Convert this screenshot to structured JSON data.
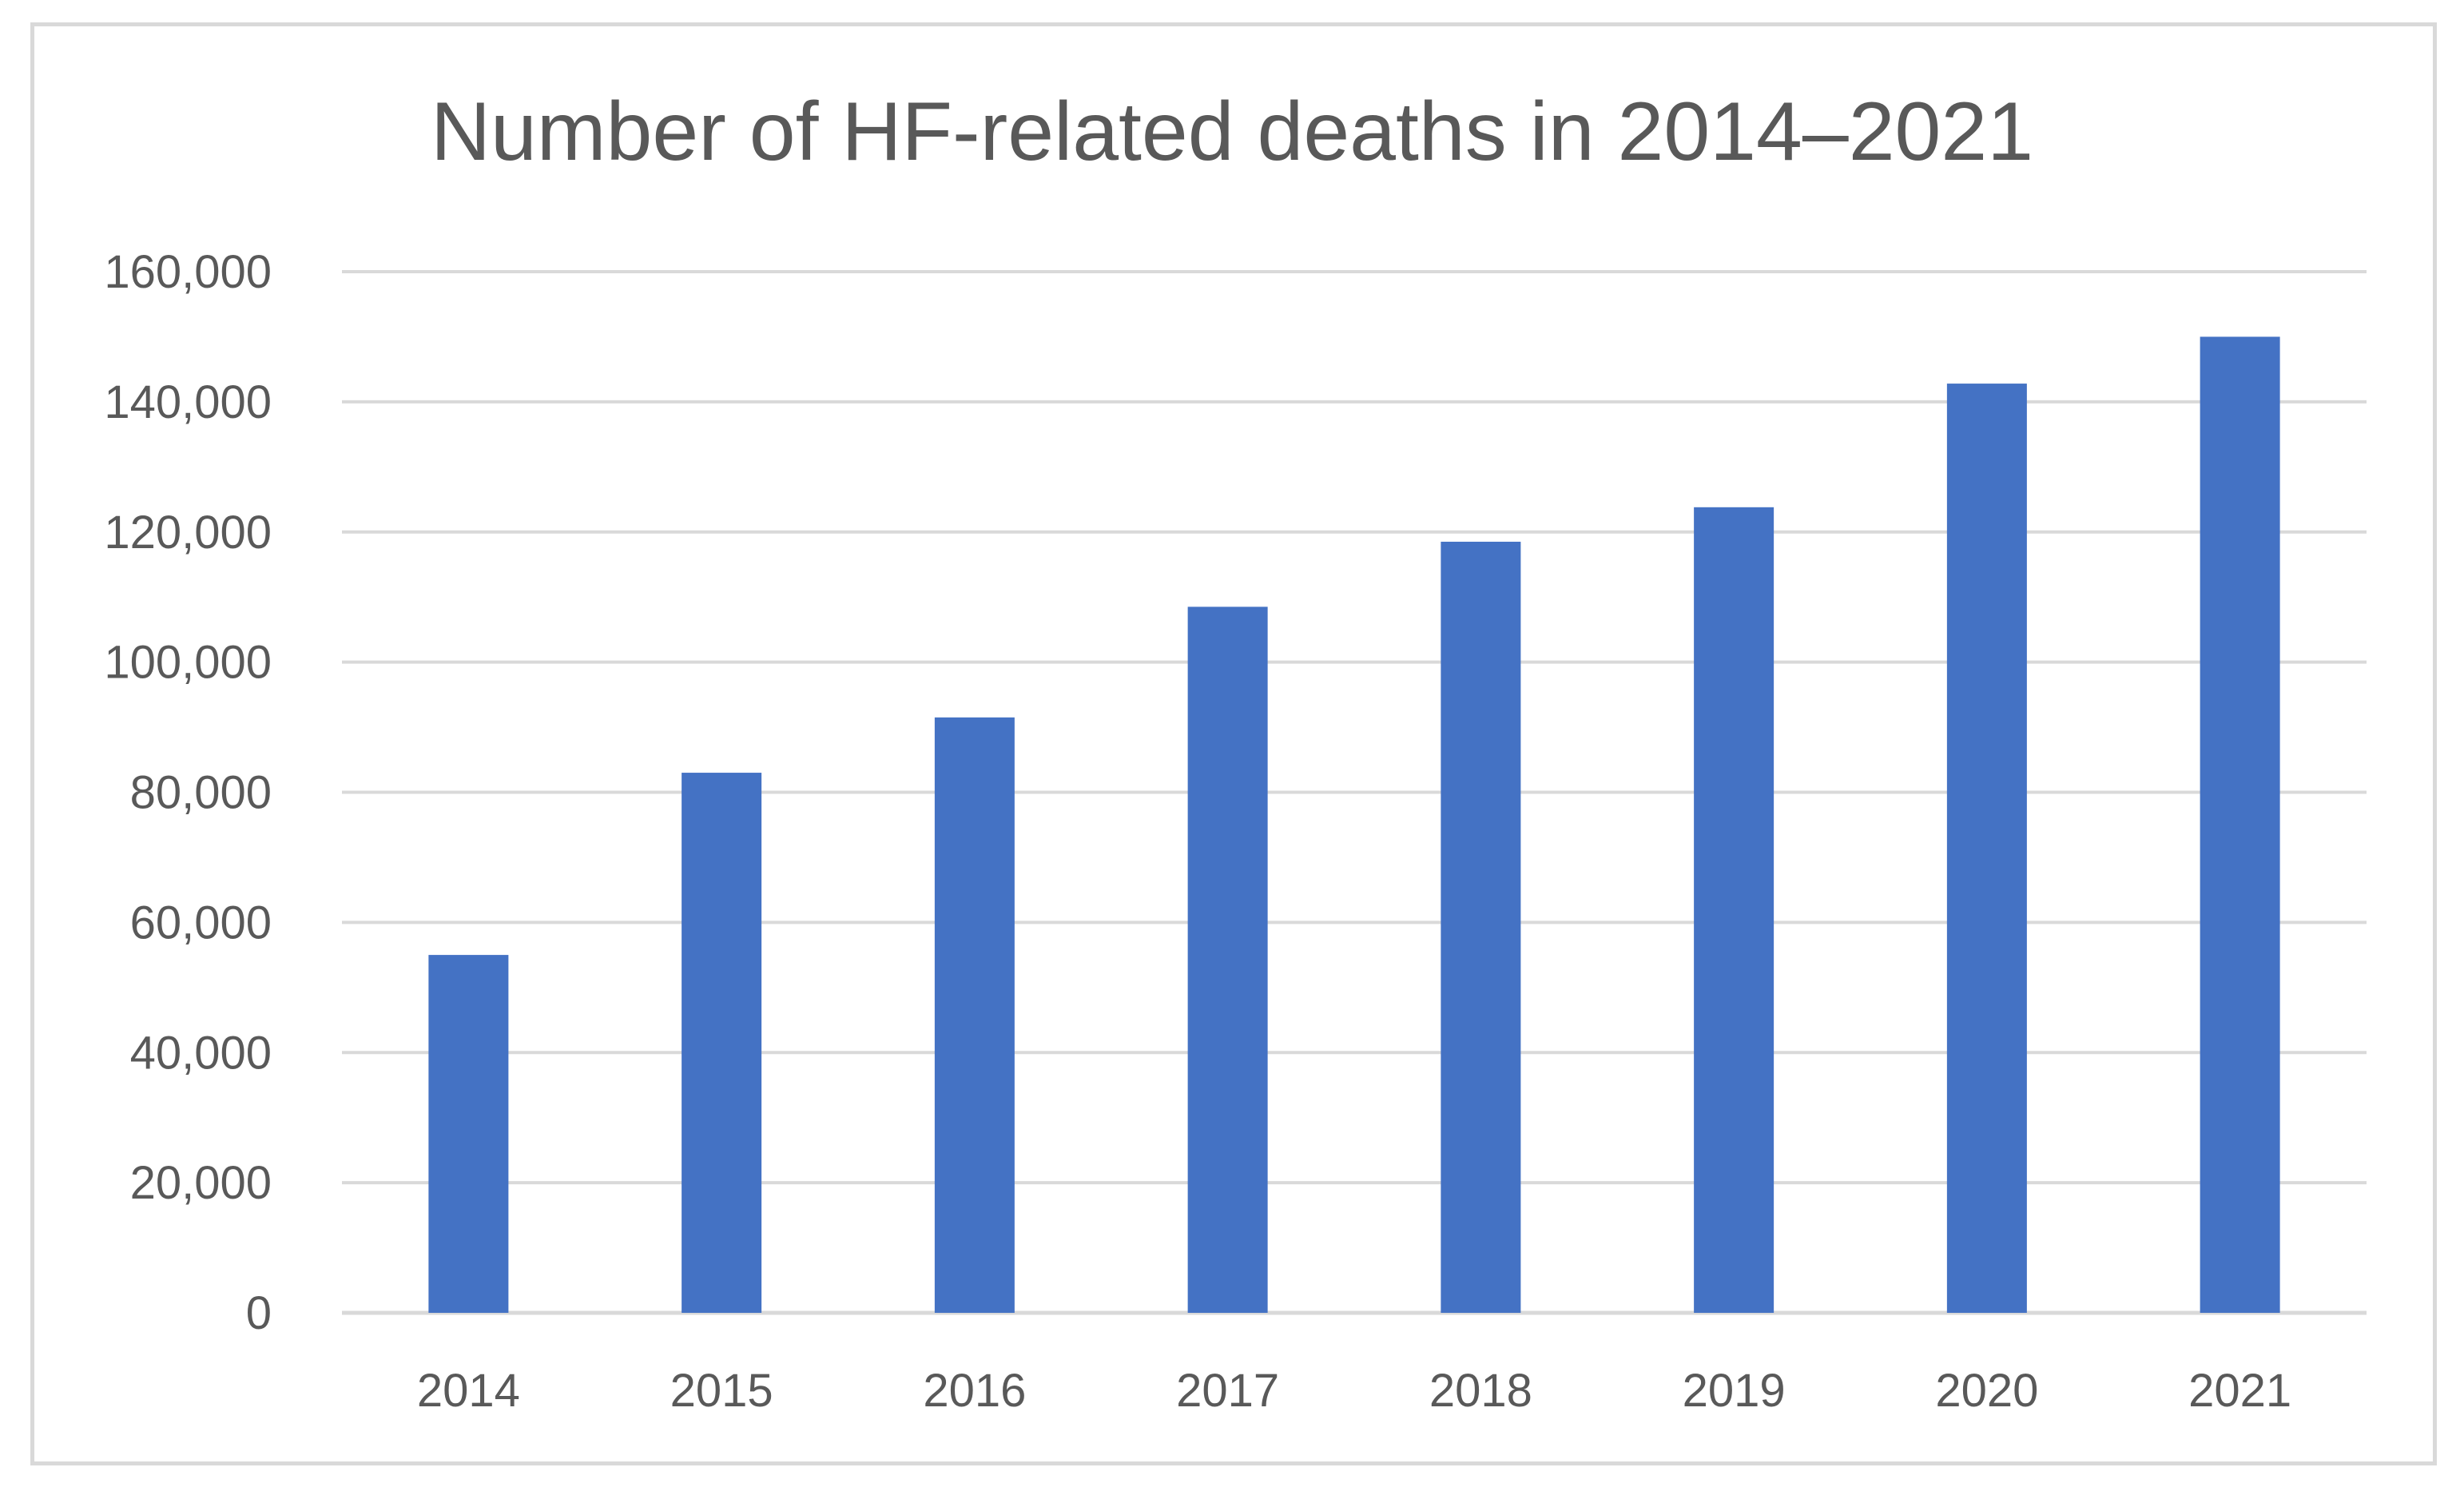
{
  "chart_data": {
    "type": "bar",
    "title": "Number of HF-related deaths in 2014–2021",
    "xlabel": "",
    "ylabel": "",
    "categories": [
      "2014",
      "2015",
      "2016",
      "2017",
      "2018",
      "2019",
      "2020",
      "2021"
    ],
    "values": [
      55000,
      83000,
      91500,
      108500,
      118500,
      123800,
      142800,
      150000
    ],
    "ylim": [
      0,
      160000
    ],
    "yticks": [
      0,
      20000,
      40000,
      60000,
      80000,
      100000,
      120000,
      140000,
      160000
    ],
    "ytick_labels": [
      "0",
      "20,000",
      "40,000",
      "60,000",
      "80,000",
      "100,000",
      "120,000",
      "140,000",
      "160,000"
    ],
    "grid": true,
    "legend": "none",
    "bar_color": "#4472c4",
    "grid_color": "#d9d9d9",
    "text_color": "#595959"
  }
}
